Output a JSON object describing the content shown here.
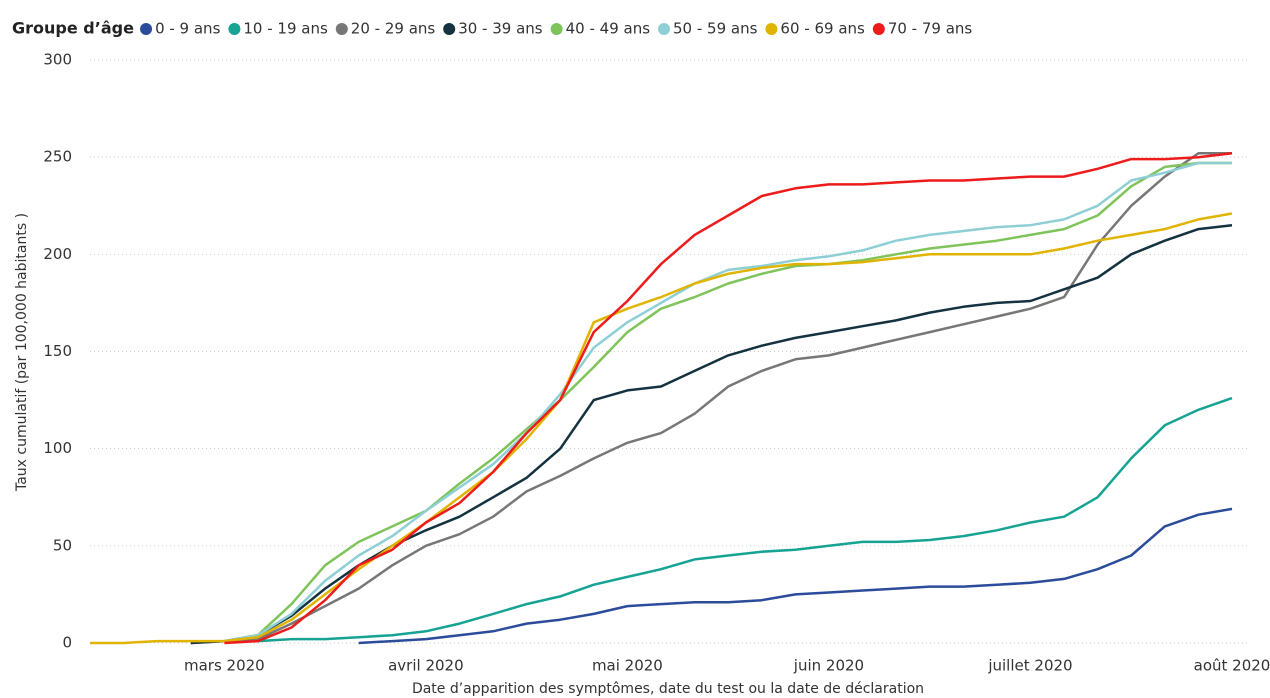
{
  "chart_data": {
    "type": "line",
    "legend_title": "Groupe d’âge",
    "y_label": "Taux cumulatif (par 100,000 habitants )",
    "x_label": "Date d’apparition des symptômes, date du test ou la date de déclaration",
    "categories": [
      null,
      null,
      null,
      null,
      "mars 2020",
      null,
      null,
      null,
      null,
      null,
      "avril 2020",
      null,
      null,
      null,
      null,
      null,
      "mai 2020",
      null,
      null,
      null,
      null,
      null,
      "juin 2020",
      null,
      null,
      null,
      null,
      null,
      "juillet 2020",
      null,
      null,
      null,
      null,
      null,
      "août 2020"
    ],
    "ylim": [
      0,
      300
    ],
    "yticks": [
      0,
      50,
      100,
      150,
      200,
      250,
      300
    ],
    "grid": true,
    "legend": "top",
    "series": [
      {
        "name": "0 - 9 ans",
        "color": "#2b4c9b",
        "values": [
          null,
          null,
          null,
          null,
          null,
          null,
          null,
          null,
          0,
          1,
          2,
          4,
          6,
          10,
          12,
          15,
          19,
          20,
          21,
          21,
          22,
          25,
          26,
          27,
          28,
          29,
          29,
          30,
          31,
          33,
          38,
          45,
          60,
          66,
          69
        ]
      },
      {
        "name": "10 - 19 ans",
        "color": "#16a394",
        "values": [
          null,
          null,
          null,
          null,
          null,
          1,
          2,
          2,
          3,
          4,
          6,
          10,
          15,
          20,
          24,
          30,
          34,
          38,
          43,
          45,
          47,
          48,
          50,
          52,
          52,
          53,
          55,
          58,
          62,
          65,
          75,
          95,
          112,
          120,
          126
        ]
      },
      {
        "name": "20 - 29 ans",
        "color": "#777777",
        "values": [
          null,
          null,
          null,
          0,
          1,
          2,
          10,
          19,
          28,
          40,
          50,
          56,
          65,
          78,
          86,
          95,
          103,
          108,
          118,
          132,
          140,
          146,
          148,
          152,
          156,
          160,
          164,
          168,
          172,
          178,
          205,
          225,
          240,
          252,
          252
        ]
      },
      {
        "name": "30 - 39 ans",
        "color": "#14323f",
        "values": [
          null,
          null,
          null,
          0,
          1,
          4,
          14,
          28,
          40,
          50,
          58,
          65,
          75,
          85,
          100,
          125,
          130,
          132,
          140,
          148,
          153,
          157,
          160,
          163,
          166,
          170,
          173,
          175,
          176,
          182,
          188,
          200,
          207,
          213,
          215
        ]
      },
      {
        "name": "40 - 49 ans",
        "color": "#7fc45a",
        "values": [
          null,
          null,
          null,
          null,
          1,
          4,
          20,
          40,
          52,
          60,
          68,
          82,
          95,
          110,
          125,
          142,
          160,
          172,
          178,
          185,
          190,
          194,
          195,
          197,
          200,
          203,
          205,
          207,
          210,
          213,
          220,
          235,
          245,
          247,
          247
        ]
      },
      {
        "name": "50 - 59 ans",
        "color": "#8ecfd6",
        "values": [
          null,
          null,
          null,
          null,
          1,
          4,
          15,
          32,
          45,
          55,
          68,
          80,
          92,
          108,
          128,
          152,
          165,
          175,
          185,
          192,
          194,
          197,
          199,
          202,
          207,
          210,
          212,
          214,
          215,
          218,
          225,
          238,
          242,
          247,
          247
        ]
      },
      {
        "name": "60 - 69 ans",
        "color": "#e0b400",
        "values": [
          0,
          0,
          1,
          1,
          1,
          3,
          12,
          25,
          38,
          50,
          62,
          75,
          88,
          105,
          125,
          165,
          172,
          178,
          185,
          190,
          193,
          195,
          195,
          196,
          198,
          200,
          200,
          200,
          200,
          203,
          207,
          210,
          213,
          218,
          221
        ]
      },
      {
        "name": "70 - 79 ans",
        "color": "#ee1b1b",
        "values": [
          null,
          null,
          null,
          null,
          0,
          1,
          8,
          22,
          40,
          48,
          62,
          72,
          88,
          108,
          125,
          160,
          176,
          195,
          210,
          220,
          230,
          234,
          236,
          236,
          237,
          238,
          238,
          239,
          240,
          240,
          244,
          249,
          249,
          250,
          252
        ]
      }
    ]
  }
}
